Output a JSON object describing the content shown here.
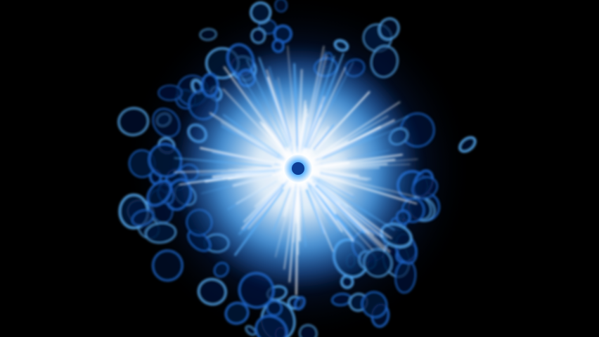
{
  "scene": {
    "subject": "blue-energy-burst",
    "colors": {
      "background": "#000000",
      "core": "#ffffff",
      "inner_glow": "#e6f4ff",
      "mid_glow": "#5ab4ff",
      "outer_glow": "#1f6cd6",
      "deep_blue": "#0b2f7a",
      "cell_dark": "#04163d",
      "center_dot": "#0d3f96"
    }
  }
}
